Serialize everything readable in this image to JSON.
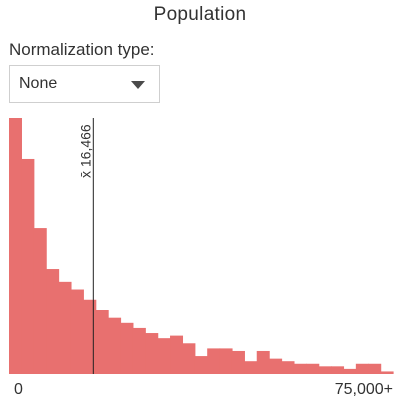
{
  "header": {
    "title": "Population"
  },
  "normalization": {
    "label": "Normalization type:",
    "selected": "None"
  },
  "histogram": {
    "bar_color": "#e8706f",
    "mean_label": "x̄ 16,466",
    "mean_value": 16466,
    "axis_min_label": "0",
    "axis_max_label": "75,000+"
  },
  "chart_data": {
    "type": "bar",
    "title": "Population",
    "xlabel": "",
    "ylabel": "",
    "xlim": [
      0,
      75000
    ],
    "bin_width": 2500,
    "grid": false,
    "mean": 16466,
    "values": [
      100,
      84,
      57,
      41,
      36,
      33,
      29,
      25,
      22,
      20,
      18,
      16,
      14,
      15,
      12,
      7,
      10,
      10,
      9,
      5,
      9,
      6,
      5,
      4,
      4,
      3,
      3,
      2,
      4,
      4,
      1
    ]
  }
}
